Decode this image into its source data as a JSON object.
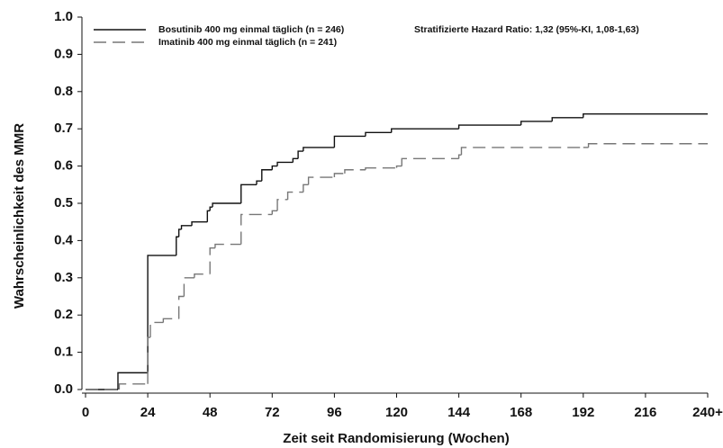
{
  "chart_data": {
    "type": "step",
    "xlabel": "Zeit seit Randomisierung (Wochen)",
    "ylabel": "Wahrscheinlichkeit des MMR",
    "annotation": "Stratifizierte Hazard Ratio: 1,32 (95%-KI, 1,08-1,63)",
    "xlim": [
      0,
      240
    ],
    "xticks": [
      0,
      24,
      48,
      72,
      96,
      120,
      144,
      168,
      192,
      216,
      {
        "value": 240,
        "label": "240+"
      }
    ],
    "ylim": [
      0,
      1
    ],
    "yticks": [
      {
        "value": 0,
        "label": "0.0"
      },
      0.1,
      0.2,
      0.3,
      0.4,
      0.5,
      0.6,
      0.7,
      0.8,
      0.9,
      {
        "value": 1,
        "label": "1.0"
      }
    ],
    "legend": "upper left",
    "series": [
      {
        "name": "Bosutinib 400 mg einmal täglich (n = 246)",
        "color": "#111111",
        "dash": "solid",
        "x": [
          0,
          12.5,
          24,
          35,
          36,
          37,
          41,
          47,
          48,
          49,
          60,
          66,
          68,
          72,
          74,
          80,
          82,
          84,
          96,
          108,
          118,
          144,
          168,
          180,
          192,
          240
        ],
        "values": [
          0,
          0.045,
          0.36,
          0.41,
          0.43,
          0.44,
          0.45,
          0.48,
          0.49,
          0.5,
          0.55,
          0.56,
          0.59,
          0.6,
          0.61,
          0.62,
          0.64,
          0.65,
          0.68,
          0.69,
          0.7,
          0.71,
          0.72,
          0.73,
          0.74,
          0.74
        ]
      },
      {
        "name": "Imatinib 400 mg einmal täglich (n = 241)",
        "color": "#777777",
        "dash": "dashed",
        "x": [
          0,
          13,
          24,
          25,
          30,
          36,
          38,
          42,
          48,
          50,
          60,
          72,
          74,
          78,
          84,
          86,
          96,
          100,
          108,
          120,
          122,
          144,
          145,
          192,
          194,
          240
        ],
        "values": [
          0,
          0.015,
          0.14,
          0.18,
          0.19,
          0.25,
          0.3,
          0.31,
          0.38,
          0.39,
          0.47,
          0.48,
          0.51,
          0.53,
          0.55,
          0.57,
          0.58,
          0.59,
          0.595,
          0.6,
          0.62,
          0.63,
          0.65,
          0.65,
          0.66,
          0.66
        ]
      }
    ]
  }
}
